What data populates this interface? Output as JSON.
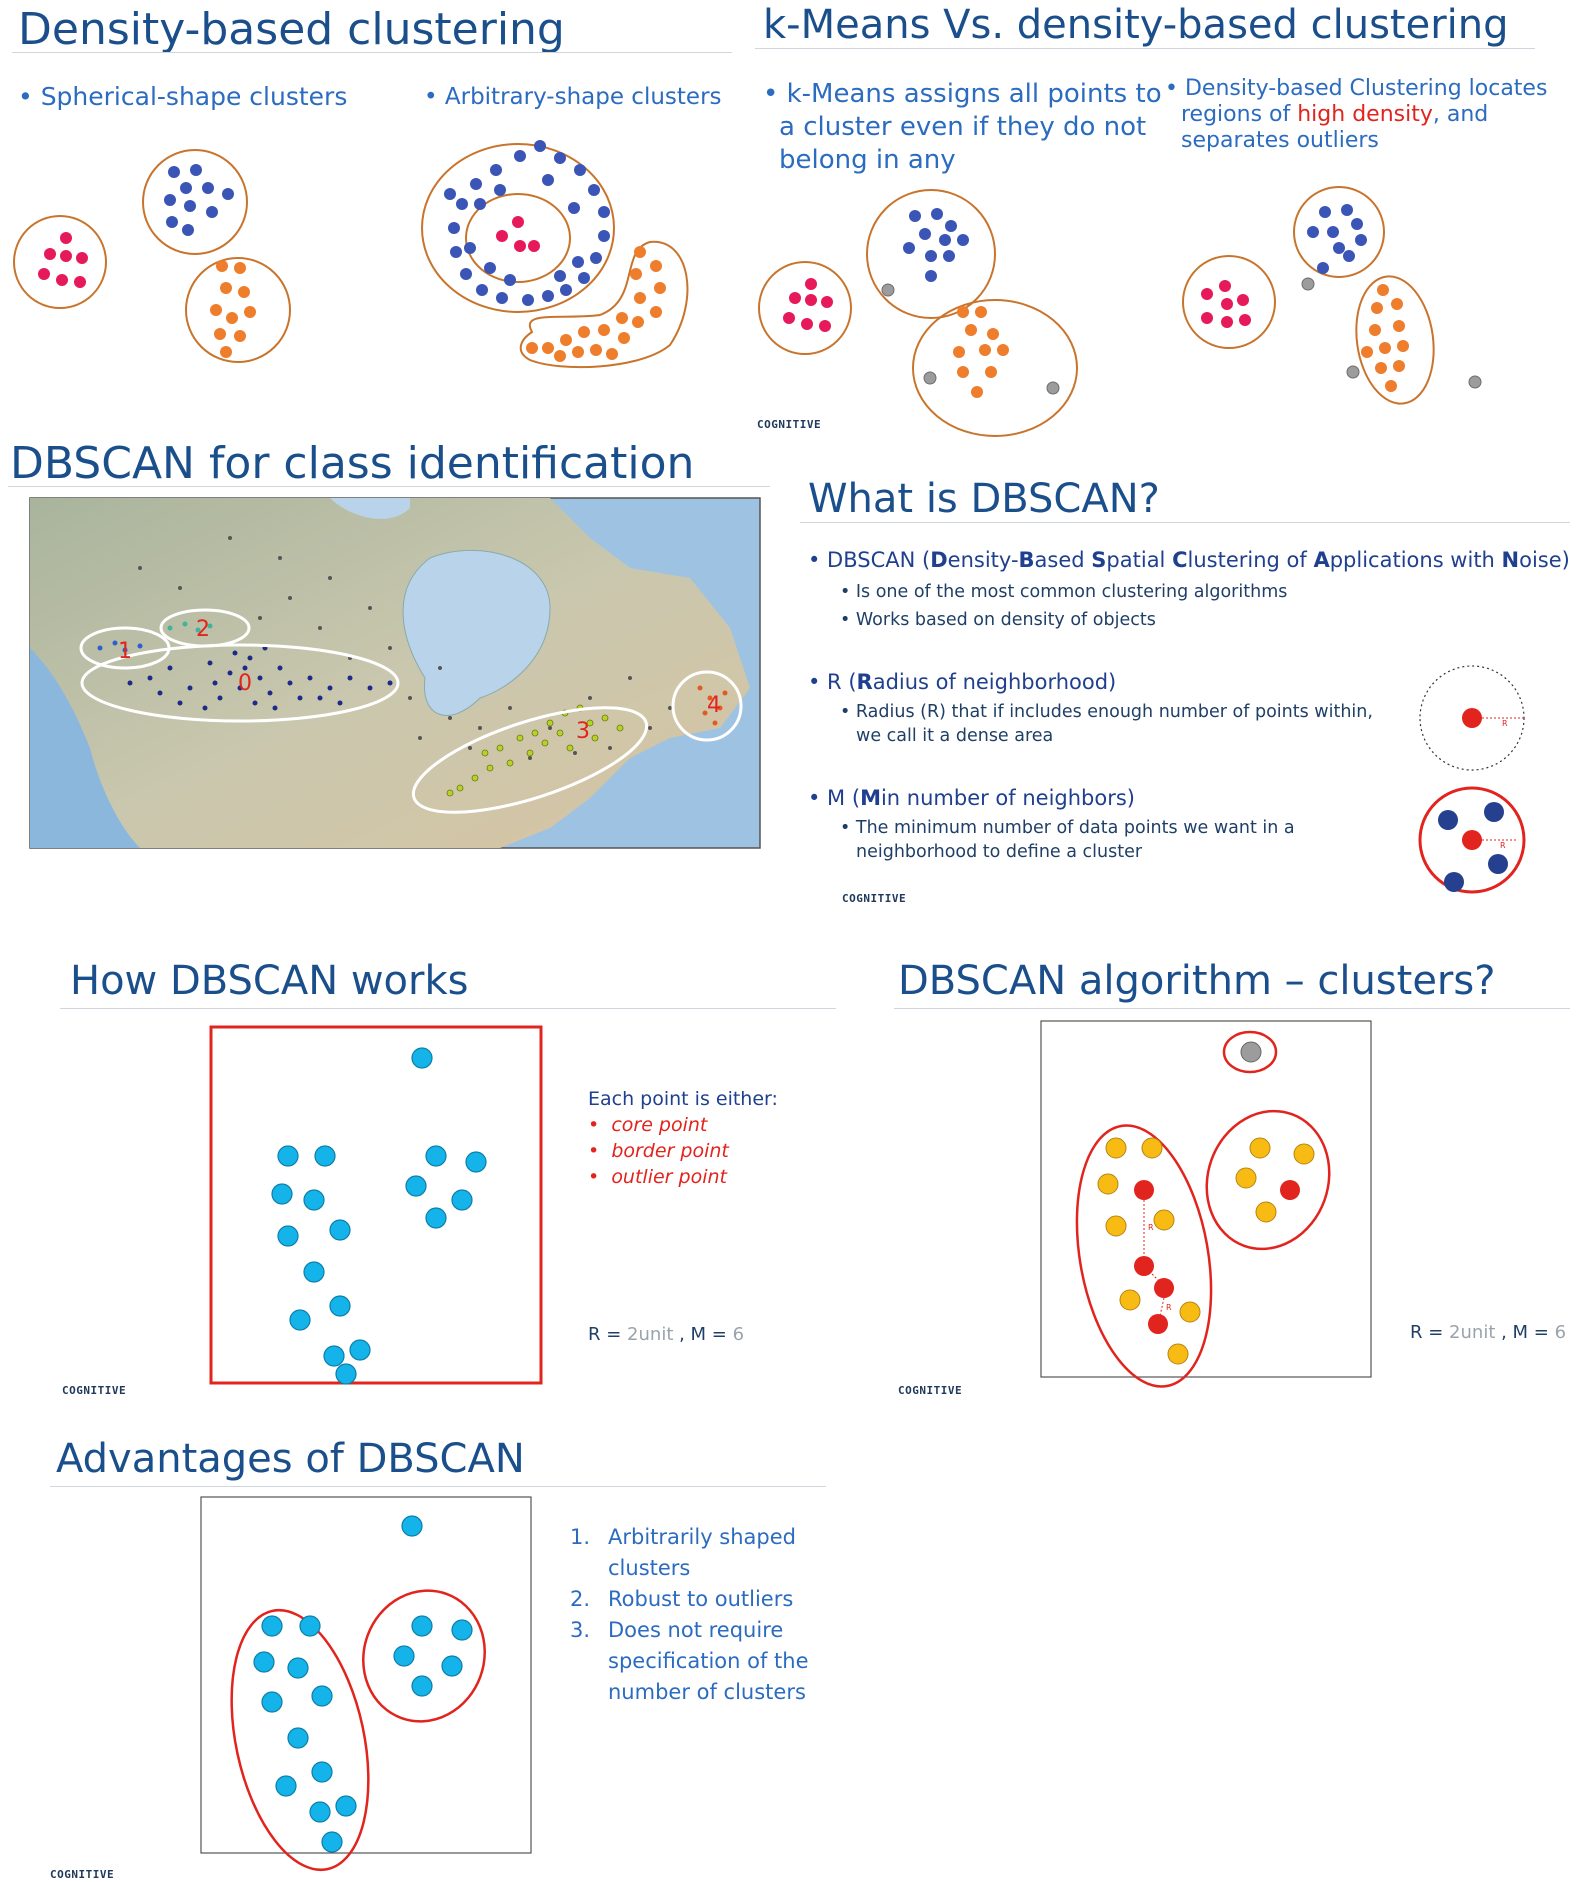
{
  "slide1": {
    "title": "Density-based clustering",
    "bullet_left": "• Spherical-shape clusters",
    "bullet_right": "• Arbitrary-shape clusters"
  },
  "slide2": {
    "title": "k-Means Vs. density-based clustering",
    "bullet_left": [
      "• k-Means assigns all points to",
      "a cluster even if they do not",
      "belong in any"
    ],
    "bullet_right_line1": "• Density-based Clustering locates",
    "bullet_right_line2_pre": "regions of ",
    "bullet_right_line2_red": "high density",
    "bullet_right_line2_post": ", and",
    "bullet_right_line3": "separates outliers",
    "logo": "COGNITIVE"
  },
  "slide3": {
    "title": "DBSCAN for class identification",
    "cluster_labels": [
      "1",
      "2",
      "0",
      "3",
      "4"
    ]
  },
  "slide4": {
    "title": "What is DBSCAN?",
    "b1_pre": "• DBSCAN (",
    "b1_words": [
      {
        "bold": "D",
        "rest": "ensity-"
      },
      {
        "bold": "B",
        "rest": "ased "
      },
      {
        "bold": "S",
        "rest": "patial "
      },
      {
        "bold": "C",
        "rest": "lustering of "
      },
      {
        "bold": "A",
        "rest": "pplications with "
      },
      {
        "bold": "N",
        "rest": "oise)"
      }
    ],
    "b1_sub": [
      "• Is one of the most common clustering algorithms",
      "• Works based on density of objects"
    ],
    "b2_pre": "• R (",
    "b2_bold": "R",
    "b2_rest": "adius of neighborhood)",
    "b2_sub_line1": "• Radius (R) that if includes enough number of points within,",
    "b2_sub_line2": "we call it a dense area",
    "b3_pre": "• M (",
    "b3_bold": "M",
    "b3_rest": "in number of neighbors)",
    "b3_sub_line1": "• The minimum number of data points we want in a",
    "b3_sub_line2": "neighborhood to define a cluster",
    "r_label": "R",
    "logo": "COGNITIVE"
  },
  "slide5": {
    "title": "How DBSCAN works",
    "heading": "Each point is either:",
    "items": [
      "core point",
      "border point",
      "outlier point"
    ],
    "param_r_label": "R = ",
    "param_r_value": "2unit",
    "param_m_label": " , M = ",
    "param_m_value": "6",
    "logo": "COGNITIVE"
  },
  "slide6": {
    "title": "DBSCAN algorithm – clusters?",
    "param_r_label": "R = ",
    "param_r_value": "2unit",
    "param_m_label": " , M = ",
    "param_m_value": "6",
    "r_label": "R",
    "logo": "COGNITIVE"
  },
  "slide7": {
    "title": "Advantages of DBSCAN",
    "items": [
      {
        "num": "1.",
        "lines": [
          "Arbitrarily shaped",
          "clusters"
        ]
      },
      {
        "num": "2.",
        "lines": [
          "Robust to outliers"
        ]
      },
      {
        "num": "3.",
        "lines": [
          "Does not require",
          "specification of the",
          "number of clusters"
        ]
      }
    ],
    "logo": "COGNITIVE"
  },
  "colors": {
    "title_blue": "#1a4f8b",
    "bullet_blue": "#2b6cc0",
    "cluster_ring": "#c8742c",
    "pink": "#e6195a",
    "blue_pt": "#3a55b5",
    "orange_pt": "#ee7d2c",
    "gray_pt": "#9c9c9c",
    "cyan_pt": "#14b4ea",
    "yellow_pt": "#f8bb14",
    "red": "#e1241d"
  }
}
